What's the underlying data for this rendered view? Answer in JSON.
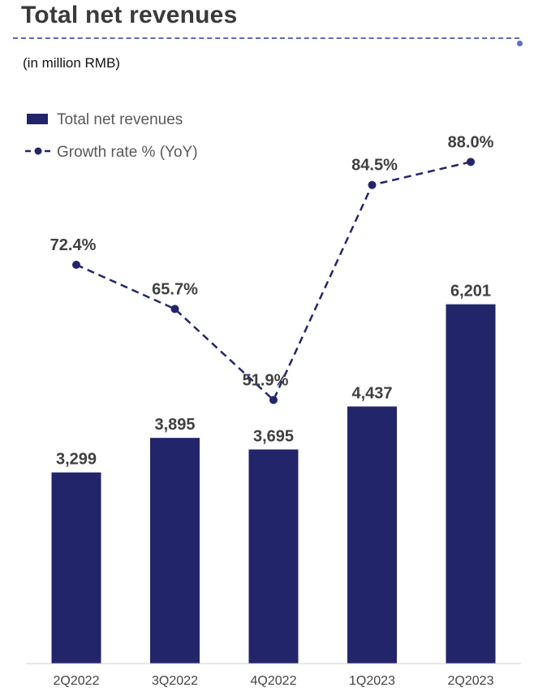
{
  "header": {
    "title": "Total net revenues",
    "subtitle": "(in million RMB)"
  },
  "chart_data": {
    "type": "bar",
    "categories": [
      "2Q2022",
      "3Q2022",
      "4Q2022",
      "1Q2023",
      "2Q2023"
    ],
    "series": [
      {
        "name": "Total net revenues",
        "type": "bar",
        "values": [
          3299,
          3895,
          3695,
          4437,
          6201
        ],
        "labels": [
          "3,299",
          "3,895",
          "3,695",
          "4,437",
          "6,201"
        ],
        "color": "#23256b"
      },
      {
        "name": "Growth rate % (YoY)",
        "type": "line",
        "style": "dashed",
        "values": [
          72.4,
          65.7,
          51.9,
          84.5,
          88.0
        ],
        "labels": [
          "72.4%",
          "65.7%",
          "51.9%",
          "84.5%",
          "88.0%"
        ],
        "color": "#23256b"
      }
    ],
    "legend": {
      "position": "top-left"
    },
    "grid": false
  }
}
